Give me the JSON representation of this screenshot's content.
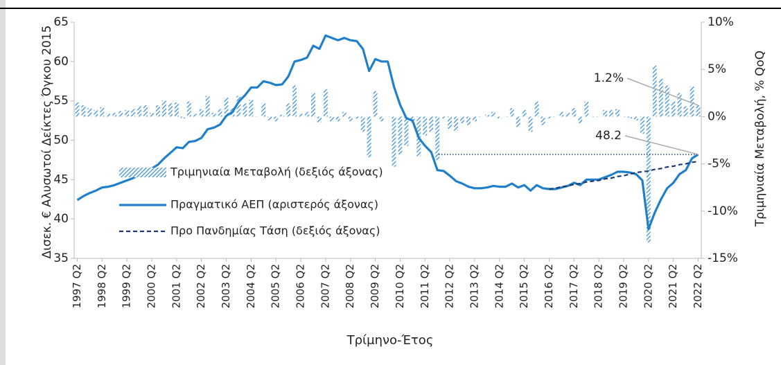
{
  "chart_data": {
    "type": "combo",
    "x_label": "Τρίμηνο-Έτος",
    "y_label": "Δισεκ. € Αλυσωτοί Δείκτες Όγκου 2015",
    "y2_label": "Τριμηνιαία Μεταβολή, % QoQ",
    "categories": [
      "1997 Q2",
      null,
      null,
      null,
      "1998 Q2",
      null,
      null,
      null,
      "1999 Q2",
      null,
      null,
      null,
      "2000 Q2",
      null,
      null,
      null,
      "2001 Q2",
      null,
      null,
      null,
      "2002 Q2",
      null,
      null,
      null,
      "2003 Q2",
      null,
      null,
      null,
      "2004 Q2",
      null,
      null,
      null,
      "2005 Q2",
      null,
      null,
      null,
      "2006 Q2",
      null,
      null,
      null,
      "2007 Q2",
      null,
      null,
      null,
      "2008 Q2",
      null,
      null,
      null,
      "2009 Q2",
      null,
      null,
      null,
      "2010 Q2",
      null,
      null,
      null,
      "2011 Q2",
      null,
      null,
      null,
      "2012 Q2",
      null,
      null,
      null,
      "2013 Q2",
      null,
      null,
      null,
      "2014 Q2",
      null,
      null,
      null,
      "2015 Q2",
      null,
      null,
      null,
      "2016 Q2",
      null,
      null,
      null,
      "2017 Q2",
      null,
      null,
      null,
      "2018 Q2",
      null,
      null,
      null,
      "2019 Q2",
      null,
      null,
      null,
      "2020 Q2",
      null,
      null,
      null,
      "2021 Q2",
      null,
      null,
      null,
      "2022 Q2"
    ],
    "series": [
      {
        "name": "Τριμηνιαία Μεταβολή (δεξιός άξονας)",
        "type": "bar",
        "axis": "y2",
        "color": "#2e8ad6",
        "values": [
          1.5,
          1.2,
          0.9,
          0.7,
          1.0,
          0.3,
          0.4,
          0.6,
          0.7,
          0.8,
          1.1,
          1.2,
          0.4,
          1.2,
          1.7,
          1.4,
          1.5,
          -0.2,
          1.6,
          0.3,
          0.8,
          2.2,
          0.4,
          0.8,
          2.0,
          0.9,
          2.2,
          1.4,
          1.8,
          0.0,
          1.4,
          -0.4,
          -0.5,
          0.2,
          1.4,
          3.3,
          0.3,
          0.5,
          2.5,
          -0.6,
          2.9,
          -0.5,
          -0.5,
          0.5,
          -0.5,
          -0.2,
          -1.6,
          -4.3,
          2.7,
          -0.5,
          0.0,
          -5.3,
          -4.0,
          -3.1,
          -0.6,
          -4.2,
          -2.0,
          -1.6,
          -4.6,
          -0.2,
          -1.3,
          -1.5,
          -0.7,
          -0.9,
          -0.5,
          0.0,
          0.2,
          0.5,
          -0.2,
          0.0,
          0.9,
          -1.1,
          0.7,
          -1.6,
          1.6,
          -0.9,
          -0.2,
          0.0,
          0.5,
          0.4,
          0.9,
          -0.7,
          1.6,
          0.0,
          0.0,
          0.7,
          0.7,
          0.8,
          0.0,
          -0.2,
          -0.4,
          -1.8,
          -13.3,
          5.4,
          4.0,
          3.3,
          1.6,
          2.5,
          1.1,
          3.2,
          1.2
        ]
      },
      {
        "name": "Πραγματικό ΑΕΠ (αριστερός άξονας)",
        "type": "line",
        "axis": "y",
        "color": "#1f7fc9",
        "values": [
          42.4,
          42.9,
          43.3,
          43.6,
          44.0,
          44.1,
          44.3,
          44.6,
          44.9,
          45.2,
          45.7,
          46.2,
          46.4,
          46.9,
          47.7,
          48.4,
          49.1,
          49.0,
          49.8,
          49.9,
          50.3,
          51.4,
          51.6,
          52.0,
          53.1,
          53.6,
          54.9,
          55.7,
          56.7,
          56.7,
          57.5,
          57.3,
          57.0,
          57.1,
          58.1,
          60.0,
          60.2,
          60.5,
          62.0,
          61.6,
          63.3,
          63.0,
          62.7,
          63.0,
          62.7,
          62.6,
          61.6,
          58.8,
          60.3,
          60.0,
          60.0,
          56.8,
          54.5,
          52.8,
          52.5,
          50.3,
          49.3,
          48.5,
          46.2,
          46.1,
          45.5,
          44.8,
          44.5,
          44.1,
          43.9,
          43.9,
          44.0,
          44.2,
          44.1,
          44.1,
          44.5,
          44.0,
          44.3,
          43.6,
          44.3,
          43.9,
          43.8,
          43.8,
          44.0,
          44.2,
          44.6,
          44.3,
          45.0,
          45.0,
          45.0,
          45.3,
          45.6,
          46.0,
          46.0,
          45.9,
          45.7,
          44.9,
          38.7,
          40.8,
          42.5,
          43.9,
          44.6,
          45.7,
          46.2,
          47.7,
          48.2
        ]
      },
      {
        "name": "Προ Πανδημίας Τάση (δεξιός άξονας)",
        "type": "dashed",
        "axis": "y",
        "color": "#1c3b73",
        "values": [
          null,
          null,
          null,
          null,
          null,
          null,
          null,
          null,
          null,
          null,
          null,
          null,
          null,
          null,
          null,
          null,
          null,
          null,
          null,
          null,
          null,
          null,
          null,
          null,
          null,
          null,
          null,
          null,
          null,
          null,
          null,
          null,
          null,
          null,
          null,
          null,
          null,
          null,
          null,
          null,
          null,
          null,
          null,
          null,
          null,
          null,
          null,
          null,
          null,
          null,
          null,
          null,
          null,
          null,
          null,
          null,
          null,
          null,
          null,
          null,
          null,
          null,
          null,
          null,
          null,
          null,
          null,
          null,
          null,
          null,
          null,
          null,
          null,
          null,
          null,
          null,
          43.8,
          43.9,
          44.1,
          44.2,
          44.4,
          44.5,
          44.7,
          44.8,
          44.9,
          45.1,
          45.2,
          45.4,
          45.5,
          45.7,
          45.9,
          46.0,
          46.1,
          46.3,
          46.4,
          46.6,
          46.7,
          46.9,
          47.0,
          47.2,
          47.3
        ]
      }
    ],
    "annotations": [
      {
        "label": "1.2%",
        "value": 1.2,
        "axis": "y2"
      },
      {
        "label": "48.2",
        "value": 48.2,
        "axis": "y"
      }
    ],
    "ylim": [
      35,
      65
    ],
    "yticks": [
      35,
      40,
      45,
      50,
      55,
      60,
      65
    ],
    "y2lim": [
      -15,
      10
    ],
    "y2ticks": [
      {
        "value": -15,
        "label": "-15%"
      },
      {
        "value": -10,
        "label": "-10%"
      },
      {
        "value": -5,
        "label": "-5%"
      },
      {
        "value": 0,
        "label": "0%"
      },
      {
        "value": 5,
        "label": "5%"
      },
      {
        "value": 10,
        "label": "10%"
      }
    ],
    "legend": "left",
    "grid": false
  }
}
